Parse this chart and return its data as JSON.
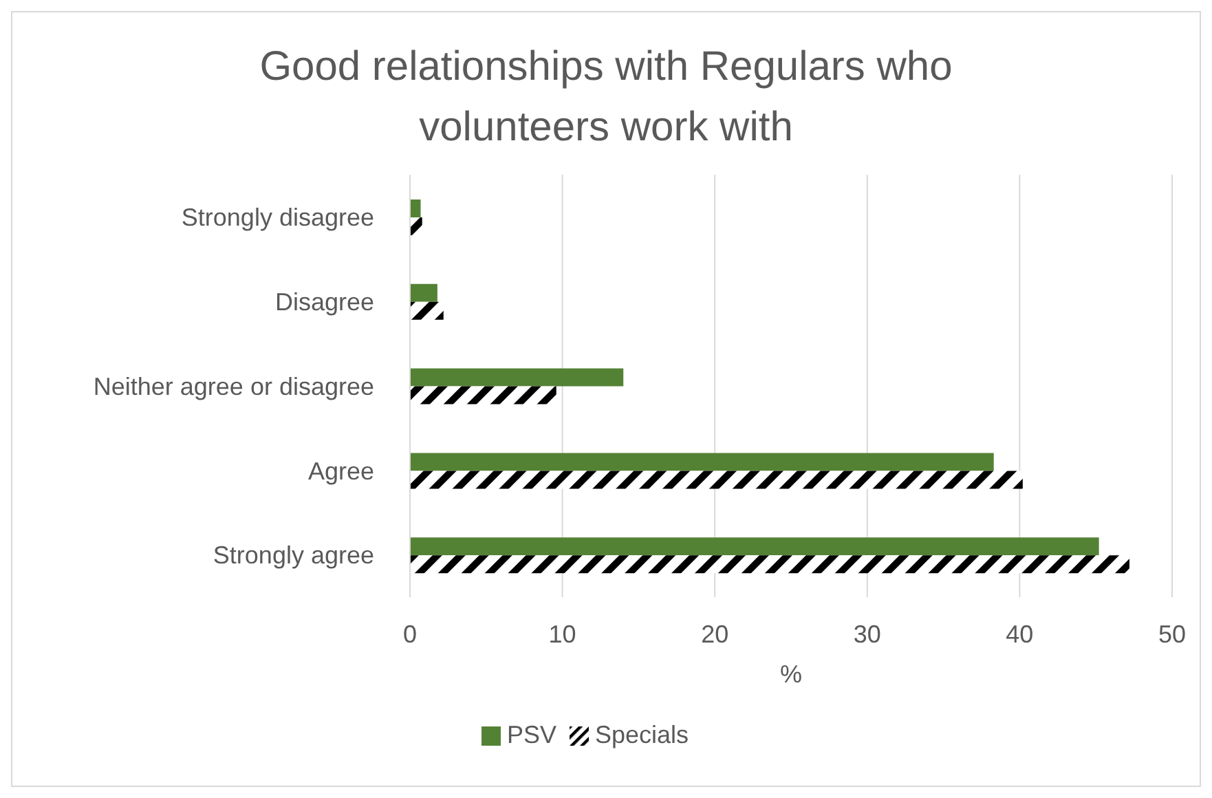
{
  "chart_data": {
    "type": "bar",
    "orientation": "horizontal",
    "title": "Good relationships with Regulars who volunteers work with",
    "xlabel": "%",
    "categories": [
      "Strongly disagree",
      "Disagree",
      "Neither agree or disagree",
      "Agree",
      "Strongly agree"
    ],
    "series": [
      {
        "name": "PSV",
        "color": "#548235",
        "values": [
          0.7,
          1.8,
          14.0,
          38.3,
          45.2
        ]
      },
      {
        "name": "Specials",
        "color": "#000000",
        "values": [
          0.8,
          2.2,
          9.6,
          40.2,
          47.2
        ]
      }
    ],
    "xlim": [
      0,
      50
    ],
    "xticks": [
      0,
      10,
      20,
      30,
      40,
      50
    ],
    "grid": "x",
    "legend": "bottom"
  }
}
